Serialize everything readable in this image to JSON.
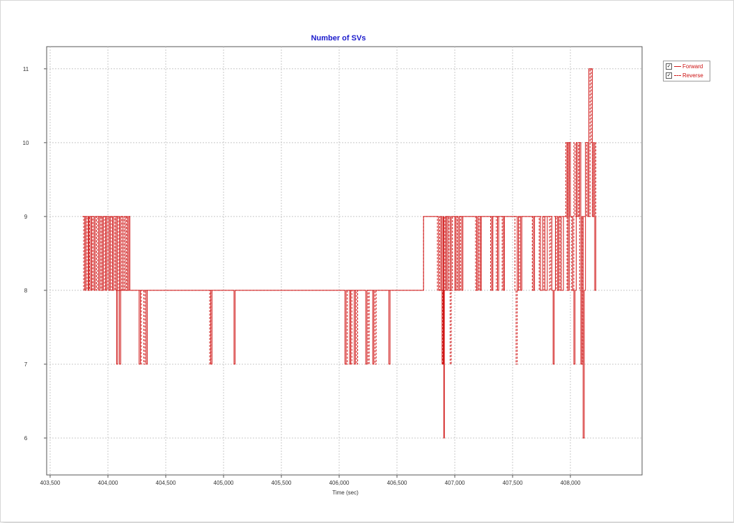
{
  "chart_data": {
    "type": "line",
    "title": "Number of SVs",
    "xlabel": "Time (sec)",
    "ylabel": "",
    "xlim": [
      403470,
      408620
    ],
    "ylim": [
      5.5,
      11.3
    ],
    "xticks": [
      403500,
      404000,
      404500,
      405000,
      405500,
      406000,
      406500,
      407000,
      407500,
      408000
    ],
    "xtick_labels": [
      "403,500",
      "404,000",
      "404,500",
      "405,000",
      "405,500",
      "406,000",
      "406,500",
      "407,000",
      "407,500",
      "408,000"
    ],
    "yticks": [
      6,
      7,
      8,
      9,
      10,
      11
    ],
    "ytick_labels": [
      "6",
      "7",
      "8",
      "9",
      "10",
      "11"
    ],
    "grid": true,
    "legend_position": "top-right, outside plot",
    "colors": {
      "title": "#1a1acc",
      "series": "#d01818",
      "grid": "#c8c8c8"
    },
    "series": [
      {
        "name": "Forward",
        "style": "solid",
        "points": [
          [
            403780,
            9
          ],
          [
            403800,
            8
          ],
          [
            403810,
            9
          ],
          [
            403830,
            8
          ],
          [
            403835,
            9
          ],
          [
            403850,
            8
          ],
          [
            403860,
            9
          ],
          [
            403880,
            8
          ],
          [
            403890,
            9
          ],
          [
            403920,
            8
          ],
          [
            403930,
            9
          ],
          [
            403950,
            8
          ],
          [
            403960,
            9
          ],
          [
            403980,
            8
          ],
          [
            403990,
            9
          ],
          [
            404010,
            8
          ],
          [
            404020,
            9
          ],
          [
            404040,
            8
          ],
          [
            404050,
            9
          ],
          [
            404070,
            8
          ],
          [
            404080,
            9
          ],
          [
            404100,
            8
          ],
          [
            404110,
            9
          ],
          [
            404130,
            8
          ],
          [
            404150,
            9
          ],
          [
            404170,
            8
          ],
          [
            404180,
            9
          ],
          [
            404190,
            8
          ],
          [
            404070,
            8
          ],
          [
            404075,
            7
          ],
          [
            404085,
            8
          ],
          [
            404100,
            7
          ],
          [
            404110,
            8
          ],
          [
            404270,
            7
          ],
          [
            404280,
            8
          ],
          [
            404330,
            7
          ],
          [
            404340,
            8
          ],
          [
            404890,
            7
          ],
          [
            404900,
            8
          ],
          [
            405090,
            7
          ],
          [
            405100,
            8
          ],
          [
            406050,
            7
          ],
          [
            406060,
            8
          ],
          [
            406090,
            7
          ],
          [
            406100,
            8
          ],
          [
            406130,
            7
          ],
          [
            406140,
            8
          ],
          [
            406230,
            7
          ],
          [
            406240,
            8
          ],
          [
            406290,
            7
          ],
          [
            406300,
            8
          ],
          [
            406430,
            7
          ],
          [
            406440,
            8
          ],
          [
            406720,
            8
          ],
          [
            406730,
            9
          ],
          [
            406850,
            9
          ],
          [
            406860,
            8
          ],
          [
            406880,
            9
          ],
          [
            406890,
            7
          ],
          [
            406900,
            9
          ],
          [
            406905,
            6
          ],
          [
            406910,
            8
          ],
          [
            406920,
            9
          ],
          [
            406930,
            8
          ],
          [
            406940,
            9
          ],
          [
            406960,
            8
          ],
          [
            406970,
            9
          ],
          [
            407000,
            8
          ],
          [
            407010,
            9
          ],
          [
            407030,
            8
          ],
          [
            407040,
            9
          ],
          [
            407060,
            8
          ],
          [
            407070,
            9
          ],
          [
            407190,
            8
          ],
          [
            407200,
            9
          ],
          [
            407220,
            8
          ],
          [
            407230,
            9
          ],
          [
            407320,
            8
          ],
          [
            407330,
            9
          ],
          [
            407370,
            8
          ],
          [
            407380,
            9
          ],
          [
            407420,
            8
          ],
          [
            407430,
            9
          ],
          [
            407540,
            8
          ],
          [
            407550,
            9
          ],
          [
            407570,
            8
          ],
          [
            407580,
            9
          ],
          [
            407680,
            8
          ],
          [
            407690,
            9
          ],
          [
            407740,
            8
          ],
          [
            407760,
            9
          ],
          [
            407780,
            8
          ],
          [
            407800,
            9
          ],
          [
            407840,
            8
          ],
          [
            407850,
            7
          ],
          [
            407860,
            8
          ],
          [
            407870,
            9
          ],
          [
            407890,
            8
          ],
          [
            407900,
            9
          ],
          [
            407920,
            8
          ],
          [
            407940,
            9
          ],
          [
            407970,
            10
          ],
          [
            407980,
            8
          ],
          [
            407990,
            10
          ],
          [
            408000,
            9
          ],
          [
            408020,
            8
          ],
          [
            408030,
            7
          ],
          [
            408040,
            8
          ],
          [
            408050,
            10
          ],
          [
            408060,
            9
          ],
          [
            408080,
            10
          ],
          [
            408090,
            7
          ],
          [
            408100,
            9
          ],
          [
            408110,
            6
          ],
          [
            408120,
            8
          ],
          [
            408130,
            10
          ],
          [
            408150,
            9
          ],
          [
            408160,
            11
          ],
          [
            408190,
            9
          ],
          [
            408200,
            10
          ],
          [
            408210,
            8
          ],
          [
            408220,
            9
          ]
        ]
      },
      {
        "name": "Reverse",
        "style": "dashed",
        "points": [
          [
            403780,
            9
          ],
          [
            403790,
            8
          ],
          [
            403800,
            9
          ],
          [
            403820,
            8
          ],
          [
            403840,
            9
          ],
          [
            403860,
            8
          ],
          [
            403870,
            9
          ],
          [
            403900,
            8
          ],
          [
            403910,
            9
          ],
          [
            403940,
            8
          ],
          [
            403950,
            9
          ],
          [
            403970,
            8
          ],
          [
            403980,
            9
          ],
          [
            404000,
            8
          ],
          [
            404010,
            9
          ],
          [
            404030,
            8
          ],
          [
            404040,
            9
          ],
          [
            404060,
            8
          ],
          [
            404070,
            9
          ],
          [
            404090,
            8
          ],
          [
            404100,
            9
          ],
          [
            404120,
            8
          ],
          [
            404140,
            9
          ],
          [
            404160,
            8
          ],
          [
            404170,
            9
          ],
          [
            404190,
            8
          ],
          [
            404280,
            7
          ],
          [
            404290,
            8
          ],
          [
            404310,
            7
          ],
          [
            404320,
            8
          ],
          [
            404880,
            7
          ],
          [
            404890,
            8
          ],
          [
            406060,
            7
          ],
          [
            406070,
            8
          ],
          [
            406100,
            7
          ],
          [
            406110,
            8
          ],
          [
            406150,
            7
          ],
          [
            406160,
            8
          ],
          [
            406250,
            7
          ],
          [
            406260,
            8
          ],
          [
            406310,
            7
          ],
          [
            406320,
            8
          ],
          [
            406730,
            9
          ],
          [
            406840,
            9
          ],
          [
            406850,
            8
          ],
          [
            406870,
            9
          ],
          [
            406880,
            8
          ],
          [
            406895,
            7
          ],
          [
            406905,
            8
          ],
          [
            406915,
            9
          ],
          [
            406950,
            8
          ],
          [
            406960,
            7
          ],
          [
            406970,
            8
          ],
          [
            406980,
            9
          ],
          [
            407010,
            8
          ],
          [
            407020,
            9
          ],
          [
            407050,
            8
          ],
          [
            407060,
            9
          ],
          [
            407180,
            8
          ],
          [
            407190,
            9
          ],
          [
            407210,
            8
          ],
          [
            407220,
            9
          ],
          [
            407310,
            8
          ],
          [
            407320,
            9
          ],
          [
            407360,
            8
          ],
          [
            407370,
            9
          ],
          [
            407410,
            8
          ],
          [
            407420,
            9
          ],
          [
            407520,
            8
          ],
          [
            407530,
            7
          ],
          [
            407540,
            8
          ],
          [
            407560,
            9
          ],
          [
            407670,
            8
          ],
          [
            407680,
            9
          ],
          [
            407730,
            8
          ],
          [
            407740,
            9
          ],
          [
            407770,
            8
          ],
          [
            407780,
            9
          ],
          [
            407820,
            8
          ],
          [
            407830,
            9
          ],
          [
            407880,
            8
          ],
          [
            407890,
            9
          ],
          [
            407910,
            8
          ],
          [
            407920,
            9
          ],
          [
            407960,
            10
          ],
          [
            407970,
            8
          ],
          [
            407980,
            10
          ],
          [
            407990,
            9
          ],
          [
            408010,
            8
          ],
          [
            408030,
            10
          ],
          [
            408040,
            9
          ],
          [
            408070,
            10
          ],
          [
            408080,
            8
          ],
          [
            408090,
            9
          ],
          [
            408100,
            7
          ],
          [
            408110,
            9
          ],
          [
            408140,
            10
          ],
          [
            408150,
            9
          ],
          [
            408170,
            11
          ],
          [
            408180,
            10
          ],
          [
            408190,
            9
          ],
          [
            408210,
            10
          ],
          [
            408220,
            9
          ]
        ]
      }
    ]
  },
  "legend": {
    "items": [
      {
        "label": "Forward",
        "checked": true
      },
      {
        "label": "Reverse",
        "checked": true
      }
    ]
  }
}
